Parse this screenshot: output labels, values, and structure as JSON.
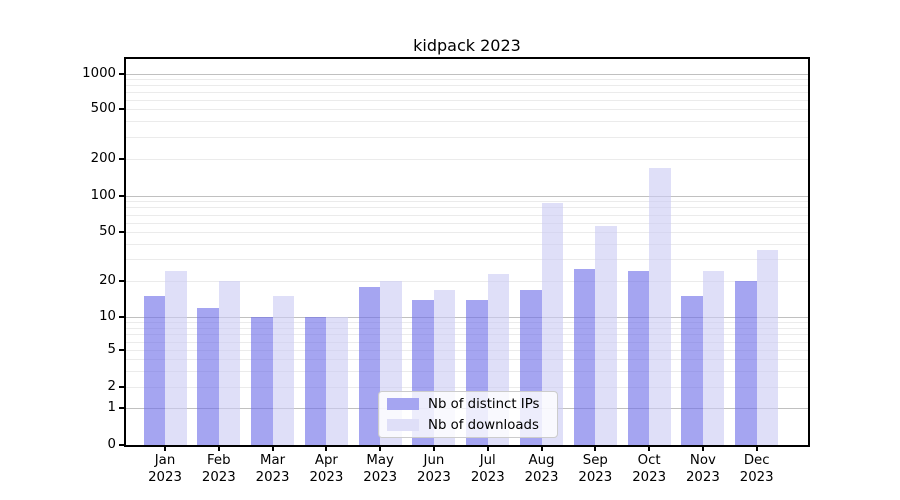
{
  "title": "kidpack 2023",
  "legend": {
    "items": [
      {
        "label": "Nb of distinct IPs",
        "swatch_color": "#a5a5f1"
      },
      {
        "label": "Nb of downloads",
        "swatch_color": "#dfdff8"
      }
    ]
  },
  "x_axis": {
    "months": [
      "Jan",
      "Feb",
      "Mar",
      "Apr",
      "May",
      "Jun",
      "Jul",
      "Aug",
      "Sep",
      "Oct",
      "Nov",
      "Dec"
    ],
    "year": "2023"
  },
  "y_axis": {
    "tick_labels": [
      "1000",
      "500",
      "200",
      "100",
      "50",
      "20",
      "10",
      "5",
      "2",
      "1",
      "0"
    ]
  },
  "colors": {
    "bar_ips_rgba": "rgba(110,110,232,0.62)",
    "bar_downloads_rgba": "rgba(203,203,243,0.62)",
    "grid_major": "#c0c0c0",
    "grid_minor": "#ebebeb"
  },
  "chart_data": {
    "type": "bar",
    "title": "kidpack 2023",
    "categories": [
      "Jan 2023",
      "Feb 2023",
      "Mar 2023",
      "Apr 2023",
      "May 2023",
      "Jun 2023",
      "Jul 2023",
      "Aug 2023",
      "Sep 2023",
      "Oct 2023",
      "Nov 2023",
      "Dec 2023"
    ],
    "series": [
      {
        "name": "Nb of distinct IPs",
        "color": "#a5a5f1",
        "values": [
          15,
          12,
          10,
          10,
          18,
          14,
          14,
          17,
          25,
          24,
          15,
          20
        ]
      },
      {
        "name": "Nb of downloads",
        "color": "#dfdff8",
        "values": [
          24,
          20,
          15,
          10,
          20,
          17,
          23,
          87,
          56,
          170,
          24,
          36
        ]
      }
    ],
    "yscale": "pseudo-log",
    "yticks": [
      0,
      1,
      2,
      5,
      10,
      20,
      50,
      100,
      200,
      500,
      1000
    ],
    "ylim": [
      0,
      1300
    ],
    "xlabel": "",
    "ylabel": "",
    "grid": "horizontal",
    "legend_position": "lower center"
  }
}
